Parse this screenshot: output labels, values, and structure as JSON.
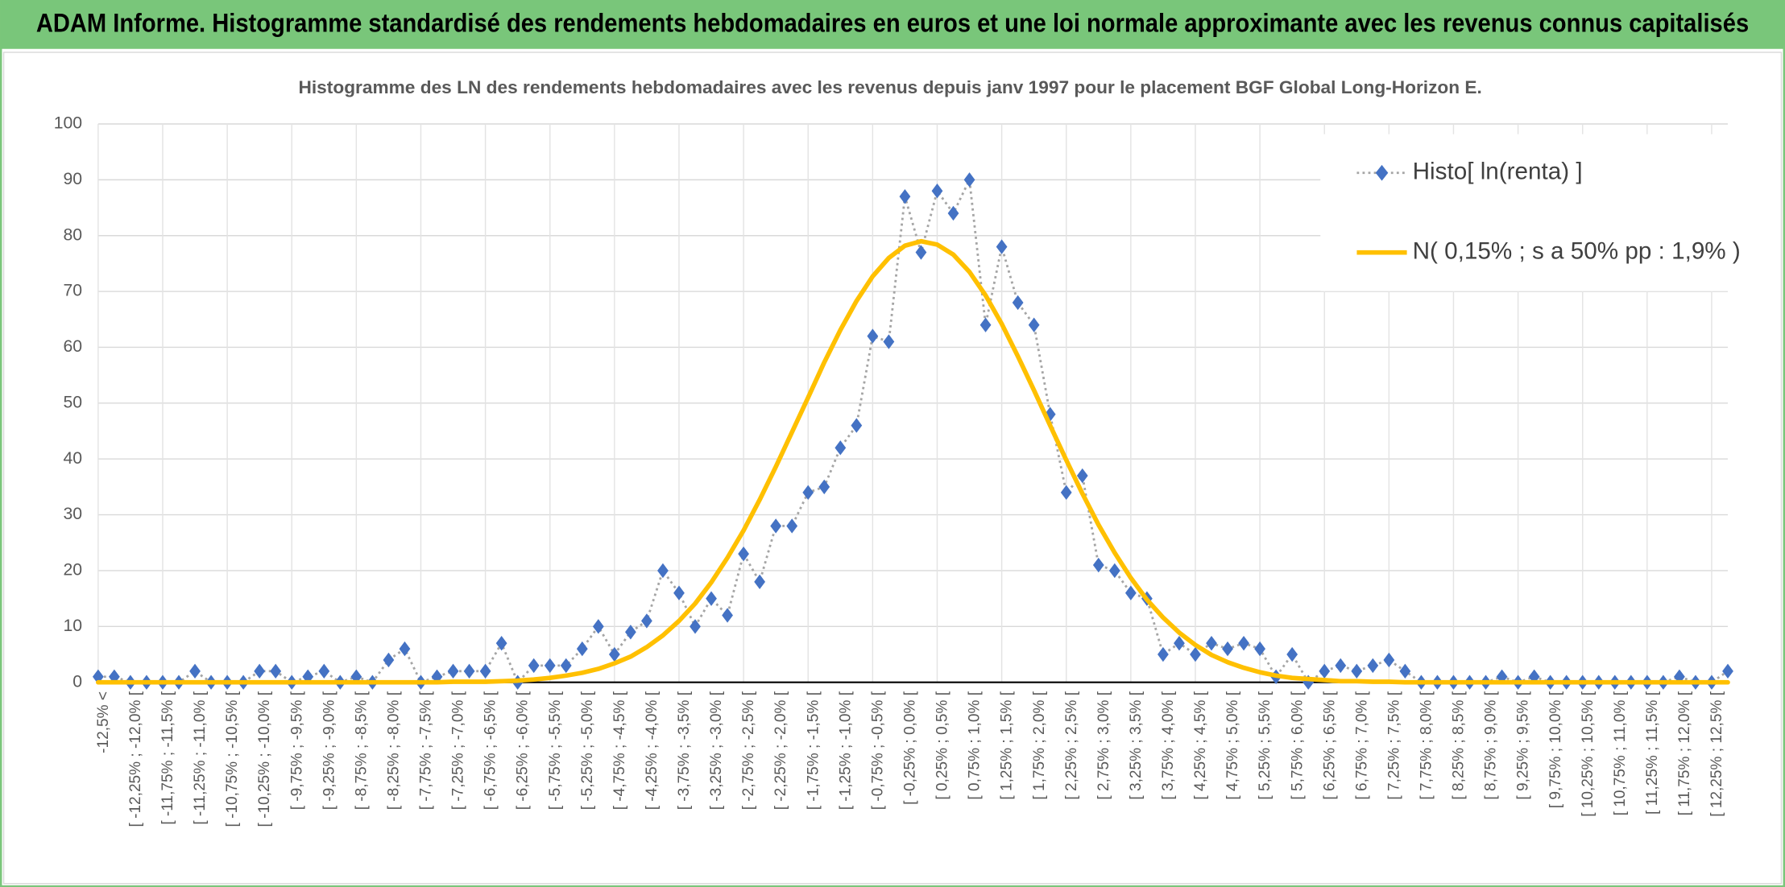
{
  "chart_data": {
    "type": "line",
    "banner": "ADAM Informe. Histogramme standardisé des rendements hebdomadaires en euros et une loi normale approximante avec les revenus connus capitalisés",
    "title": "Histogramme des LN des rendements hebdomadaires avec les revenus depuis janv 1997 pour le placement BGF Global Long-Horizon E.",
    "categories": [
      "-12,5% <",
      null,
      "[ -12,25% ; -12,0% [",
      null,
      "[ -11,75% ; -11,5% [",
      null,
      "[ -11,25% ; -11,0% [",
      null,
      "[ -10,75% ; -10,5% [",
      null,
      "[ -10,25% ; -10,0% [",
      null,
      "[ -9,75% ; -9,5% [",
      null,
      "[ -9,25% ; -9,0% [",
      null,
      "[ -8,75% ; -8,5% [",
      null,
      "[ -8,25% ; -8,0% [",
      null,
      "[ -7,75% ; -7,5% [",
      null,
      "[ -7,25% ; -7,0% [",
      null,
      "[ -6,75% ; -6,5% [",
      null,
      "[ -6,25% ; -6,0% [",
      null,
      "[ -5,75% ; -5,5% [",
      null,
      "[ -5,25% ; -5,0% [",
      null,
      "[ -4,75% ; -4,5% [",
      null,
      "[ -4,25% ; -4,0% [",
      null,
      "[ -3,75% ; -3,5% [",
      null,
      "[ -3,25% ; -3,0% [",
      null,
      "[ -2,75% ; -2,5% [",
      null,
      "[ -2,25% ; -2,0% [",
      null,
      "[ -1,75% ; -1,5% [",
      null,
      "[ -1,25% ; -1,0% [",
      null,
      "[ -0,75% ; -0,5% [",
      null,
      "[ -0,25% ; 0,0% [",
      null,
      "[ 0,25% ; 0,5% [",
      null,
      "[ 0,75% ; 1,0% [",
      null,
      "[ 1,25% ; 1,5% [",
      null,
      "[ 1,75% ; 2,0% [",
      null,
      "[ 2,25% ; 2,5% [",
      null,
      "[ 2,75% ; 3,0% [",
      null,
      "[ 3,25% ; 3,5% [",
      null,
      "[ 3,75% ; 4,0% [",
      null,
      "[ 4,25% ; 4,5% [",
      null,
      "[ 4,75% ; 5,0% [",
      null,
      "[ 5,25% ; 5,5% [",
      null,
      "[ 5,75% ; 6,0% [",
      null,
      "[ 6,25% ; 6,5% [",
      null,
      "[ 6,75% ; 7,0% [",
      null,
      "[ 7,25% ; 7,5% [",
      null,
      "[ 7,75% ; 8,0% [",
      null,
      "[ 8,25% ; 8,5% [",
      null,
      "[ 8,75% ; 9,0% [",
      null,
      "[ 9,25% ; 9,5% [",
      null,
      "[ 9,75% ; 10,0% [",
      null,
      "[ 10,25% ; 10,5% [",
      null,
      "[ 10,75% ; 11,0% [",
      null,
      "[ 11,25% ; 11,5% [",
      null,
      "[ 11,75% ; 12,0% [",
      null,
      "[ 12,25% ; 12,5% [",
      null
    ],
    "series": [
      {
        "name": "Histo[ ln(renta) ]",
        "color": "#4472c4",
        "line_color": "#a5a5a5",
        "line_style": "dotted",
        "marker": "diamond",
        "values": [
          1,
          1,
          0,
          0,
          0,
          0,
          2,
          0,
          0,
          0,
          2,
          2,
          0,
          1,
          2,
          0,
          1,
          0,
          4,
          6,
          0,
          1,
          2,
          2,
          2,
          7,
          0,
          3,
          3,
          3,
          6,
          10,
          5,
          9,
          11,
          20,
          16,
          10,
          15,
          12,
          23,
          18,
          28,
          28,
          34,
          35,
          42,
          46,
          62,
          61,
          87,
          77,
          88,
          84,
          90,
          64,
          78,
          68,
          64,
          48,
          34,
          37,
          21,
          20,
          16,
          15,
          5,
          7,
          5,
          7,
          6,
          7,
          6,
          1,
          5,
          0,
          2,
          3,
          2,
          3,
          4,
          2,
          0,
          0,
          0,
          0,
          0,
          1,
          0,
          1,
          0,
          0,
          0,
          0,
          0,
          0,
          0,
          0,
          1,
          0,
          0,
          2
        ]
      },
      {
        "name": "N( 0,15% ; s a 50% pp : 1,9% )",
        "color": "#ffc000",
        "line_style": "solid",
        "marker": "none",
        "values": [
          0,
          0,
          0,
          0,
          0,
          0,
          0,
          0,
          0,
          0,
          0,
          0,
          0,
          0,
          0,
          0,
          0,
          0,
          0,
          0,
          0,
          0,
          0.1,
          0.1,
          0.1,
          0.2,
          0.3,
          0.5,
          0.8,
          1.2,
          1.7,
          2.4,
          3.4,
          4.6,
          6.3,
          8.4,
          11.0,
          14.1,
          17.9,
          22.3,
          27.2,
          32.7,
          38.6,
          44.8,
          51.0,
          57.3,
          63.1,
          68.3,
          72.7,
          76.0,
          78.2,
          79.0,
          78.4,
          76.6,
          73.5,
          69.3,
          64.2,
          58.4,
          52.3,
          46.0,
          39.8,
          33.8,
          28.2,
          23.2,
          18.7,
          14.8,
          11.6,
          8.9,
          6.7,
          4.9,
          3.6,
          2.6,
          1.8,
          1.2,
          0.8,
          0.6,
          0.4,
          0.2,
          0.2,
          0.1,
          0.1,
          0,
          0,
          0,
          0,
          0,
          0,
          0,
          0,
          0,
          0,
          0,
          0,
          0,
          0,
          0,
          0,
          0,
          0,
          0,
          0,
          0
        ]
      }
    ],
    "ylim": [
      0,
      100
    ],
    "yticks": [
      0,
      10,
      20,
      30,
      40,
      50,
      60,
      70,
      80,
      90,
      100
    ],
    "grid": true,
    "legend": "top-right"
  }
}
